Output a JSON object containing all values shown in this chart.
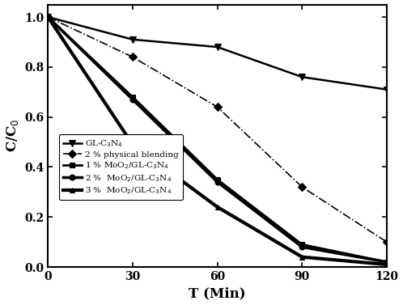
{
  "x": [
    0,
    30,
    60,
    90,
    120
  ],
  "series": {
    "GL-C3N4": [
      1.0,
      0.91,
      0.88,
      0.76,
      0.71
    ],
    "2% physical blending": [
      1.0,
      0.84,
      0.64,
      0.32,
      0.1
    ],
    "1% MoO2/GL-C3N4": [
      1.0,
      0.68,
      0.35,
      0.09,
      0.02
    ],
    "2% MoO2/GL-C3N4": [
      1.0,
      0.67,
      0.34,
      0.08,
      0.02
    ],
    "3% MoO2/GL-C3N4": [
      1.0,
      0.49,
      0.24,
      0.04,
      0.01
    ]
  },
  "styles": {
    "GL-C3N4": {
      "lw": 1.8,
      "ls": "-",
      "marker": "v",
      "ms": 6,
      "mfc": "black"
    },
    "2% physical blending": {
      "lw": 1.2,
      "ls": "-.",
      "marker": "D",
      "ms": 5,
      "mfc": "black"
    },
    "1% MoO2/GL-C3N4": {
      "lw": 2.0,
      "ls": "-",
      "marker": "s",
      "ms": 5,
      "mfc": "black"
    },
    "2% MoO2/GL-C3N4": {
      "lw": 2.5,
      "ls": "-",
      "marker": "o",
      "ms": 5,
      "mfc": "black"
    },
    "3% MoO2/GL-C3N4": {
      "lw": 3.0,
      "ls": "-",
      "marker": "^",
      "ms": 5,
      "mfc": "black"
    }
  },
  "legend_labels": [
    "GL-C$_3$N$_4$",
    "◇  2 % physical blending",
    "1 % MoO$_2$/GL-C$_3$N$_4$",
    "2 %  MoO$_2$/GL-C$_3$N$_4$",
    "3 %  MoO$_2$/GL-C$_3$N$_4$"
  ],
  "xlabel": "T (Min)",
  "ylabel": "C/C$_0$",
  "xlim": [
    0,
    120
  ],
  "ylim": [
    0.0,
    1.05
  ],
  "xticks": [
    0,
    30,
    60,
    90,
    120
  ],
  "yticks": [
    0.0,
    0.2,
    0.4,
    0.6,
    0.8,
    1.0
  ],
  "figsize": [
    4.98,
    3.77
  ],
  "dpi": 100
}
